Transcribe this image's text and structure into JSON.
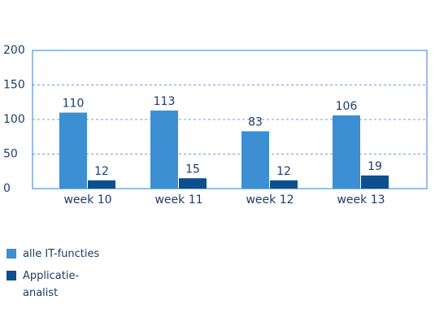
{
  "chart_data": {
    "type": "bar",
    "categories": [
      "week 10",
      "week 11",
      "week 12",
      "week 13"
    ],
    "series": [
      {
        "name": "alle IT-functies",
        "color": "#3b8fd2",
        "values": [
          110,
          113,
          83,
          106
        ]
      },
      {
        "name": "Applicatie-analist",
        "color": "#0d4f8e",
        "values": [
          12,
          15,
          12,
          19
        ]
      }
    ],
    "ylim": [
      0,
      200
    ],
    "yticks": [
      0,
      50,
      100,
      150,
      200
    ],
    "grid": true
  }
}
